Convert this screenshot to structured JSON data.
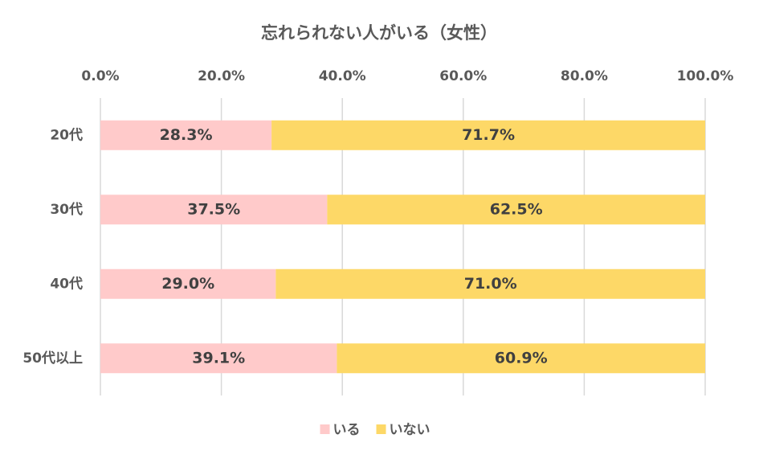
{
  "chart_data": {
    "type": "stacked-bar-horizontal",
    "title": "忘れられない人がいる（女性）",
    "categories": [
      "20代",
      "30代",
      "40代",
      "50代以上"
    ],
    "series": [
      {
        "name": "いる",
        "color": "#ffcaca",
        "values": [
          28.3,
          37.5,
          29.0,
          39.1
        ],
        "value_labels": [
          "28.3%",
          "37.5%",
          "29.0%",
          "39.1%"
        ]
      },
      {
        "name": "いない",
        "color": "#fdd867",
        "values": [
          71.7,
          62.5,
          71.0,
          60.9
        ],
        "value_labels": [
          "71.7%",
          "62.5%",
          "71.0%",
          "60.9%"
        ]
      }
    ],
    "xlim": [
      0,
      100
    ],
    "xticks": [
      {
        "value": 0,
        "label": "0.0%"
      },
      {
        "value": 20,
        "label": "20.0%"
      },
      {
        "value": 40,
        "label": "40.0%"
      },
      {
        "value": 60,
        "label": "60.0%"
      },
      {
        "value": 80,
        "label": "80.0%"
      },
      {
        "value": 100,
        "label": "100.0%"
      }
    ],
    "grid": true,
    "legend": "bottom"
  }
}
